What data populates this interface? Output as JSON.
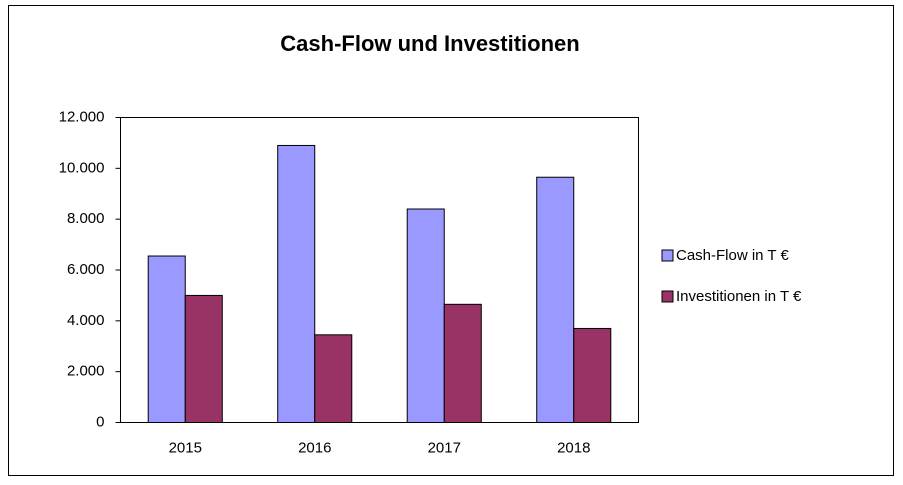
{
  "chart_data": {
    "type": "bar",
    "title": "Cash-Flow und Investitionen",
    "categories": [
      "2015",
      "2016",
      "2017",
      "2018"
    ],
    "series": [
      {
        "name": "Cash-Flow in T €",
        "color": "#9999ff",
        "values": [
          6550,
          10900,
          8400,
          9650
        ]
      },
      {
        "name": "Investitionen in T €",
        "color": "#993366",
        "values": [
          5000,
          3450,
          4650,
          3700
        ]
      }
    ],
    "ylim": [
      0,
      12000
    ],
    "yticks": [
      0,
      {
        "value": 2000,
        "label": "2.000"
      },
      {
        "value": 4000,
        "label": "4.000"
      },
      {
        "value": 6000,
        "label": "6.000"
      },
      {
        "value": 8000,
        "label": "8.000"
      },
      {
        "value": 10000,
        "label": "10.000"
      },
      {
        "value": 12000,
        "label": "12.000"
      }
    ],
    "grid": false,
    "legend": "right"
  }
}
